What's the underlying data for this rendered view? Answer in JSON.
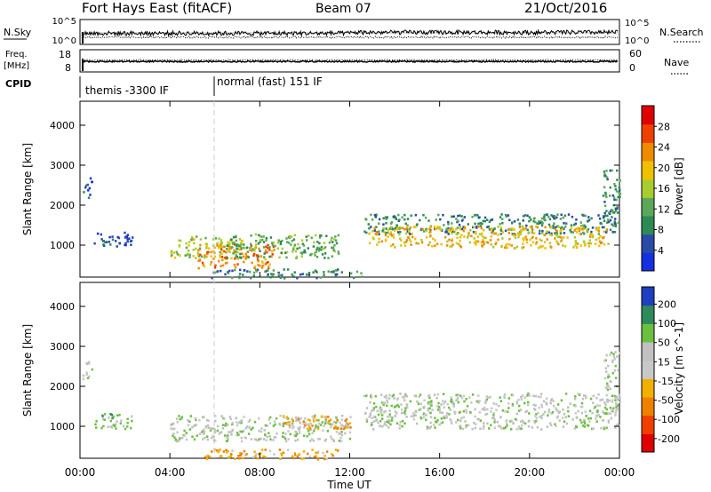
{
  "header": {
    "station": "Fort Hays East (fitACF)",
    "beam": "Beam 07",
    "date": "21/Oct/2016"
  },
  "strips": {
    "nsky": {
      "left_label": "N.Sky",
      "right_label": "N.Search",
      "left_ticks": [
        "10^5",
        "10^0"
      ],
      "right_ticks": [
        "10^5",
        "10^0"
      ]
    },
    "freq": {
      "left_label_1": "Freq.",
      "left_label_2": "[MHz]",
      "right_label": "Nave",
      "left_ticks": [
        "18",
        "8"
      ],
      "right_ticks": [
        "60",
        "0"
      ]
    },
    "cpid": {
      "left_label": "CPID",
      "modes": [
        "themis -3300 IF",
        "normal (fast) 151 IF"
      ]
    }
  },
  "colors": {
    "power": [
      "#1430e0",
      "#2a4aa8",
      "#2e8a55",
      "#5aa85a",
      "#a8cc30",
      "#f0c000",
      "#f08a00",
      "#f04000",
      "#e00000"
    ],
    "velocity": [
      "#1f3fc0",
      "#2d8a5a",
      "#6cc040",
      "#c0c0c0",
      "#c8c8c8",
      "#f0b000",
      "#f08000",
      "#f04000",
      "#e00000"
    ]
  },
  "chart_data": [
    {
      "type": "heatmap",
      "quantity": "power",
      "ylabel": "Slant Range [km]",
      "yticks": [
        1000,
        2000,
        3000,
        4000
      ],
      "ylim": [
        200,
        4600
      ],
      "xlim": [
        0,
        24
      ],
      "colorbar_label": "Power [dB]",
      "colorbar_ticks": [
        4,
        8,
        12,
        16,
        20,
        24,
        28
      ],
      "colorbar_range": [
        0,
        32
      ],
      "regions": [
        {
          "t0": 0.6,
          "t1": 2.3,
          "r0": 960,
          "r1": 1340,
          "level": 1
        },
        {
          "t0": 4.0,
          "t1": 7.2,
          "r0": 700,
          "r1": 1250,
          "level": 4
        },
        {
          "t0": 5.2,
          "t1": 8.6,
          "r0": 450,
          "r1": 1050,
          "level": 6
        },
        {
          "t0": 6.5,
          "t1": 11.6,
          "r0": 700,
          "r1": 1300,
          "level": 3
        },
        {
          "t0": 5.8,
          "t1": 12.5,
          "r0": 200,
          "r1": 420,
          "level": 2
        },
        {
          "t0": 12.6,
          "t1": 23.8,
          "r0": 1300,
          "r1": 1800,
          "level": 2
        },
        {
          "t0": 12.8,
          "t1": 23.5,
          "r0": 950,
          "r1": 1500,
          "level": 5
        },
        {
          "t0": 23.2,
          "t1": 24.0,
          "r0": 1500,
          "r1": 2900,
          "level": 2
        },
        {
          "t0": 0.1,
          "t1": 0.5,
          "r0": 2200,
          "r1": 2700,
          "level": 1
        }
      ]
    },
    {
      "type": "heatmap",
      "quantity": "velocity",
      "ylabel": "Slant Range [km]",
      "yticks": [
        1000,
        2000,
        3000,
        4000
      ],
      "ylim": [
        200,
        4600
      ],
      "xlim": [
        0,
        24
      ],
      "xlabel": "Time UT",
      "xticks": [
        "00:00",
        "04:00",
        "08:00",
        "12:00",
        "16:00",
        "20:00",
        "00:00"
      ],
      "colorbar_label": "Velocity [m s^-1]",
      "colorbar_ticks": [
        "200",
        "100",
        "50",
        "15",
        "-15",
        "-50",
        "-100",
        "-200"
      ],
      "regions": [
        {
          "t0": 0.6,
          "t1": 2.3,
          "r0": 960,
          "r1": 1340,
          "level": 2
        },
        {
          "t0": 4.0,
          "t1": 12.0,
          "r0": 650,
          "r1": 1300,
          "level": 3
        },
        {
          "t0": 9.0,
          "t1": 12.0,
          "r0": 950,
          "r1": 1300,
          "level": 5
        },
        {
          "t0": 5.5,
          "t1": 11.5,
          "r0": 200,
          "r1": 450,
          "level": 5
        },
        {
          "t0": 12.6,
          "t1": 24.0,
          "r0": 950,
          "r1": 1850,
          "level": 3
        },
        {
          "t0": 23.3,
          "t1": 24.0,
          "r0": 1600,
          "r1": 2900,
          "level": 3
        },
        {
          "t0": 0.1,
          "t1": 0.5,
          "r0": 2200,
          "r1": 2700,
          "level": 3
        }
      ]
    }
  ],
  "time_axis": {
    "label": "Time UT",
    "ticks": [
      "00:00",
      "04:00",
      "08:00",
      "12:00",
      "16:00",
      "20:00",
      "00:00"
    ]
  }
}
